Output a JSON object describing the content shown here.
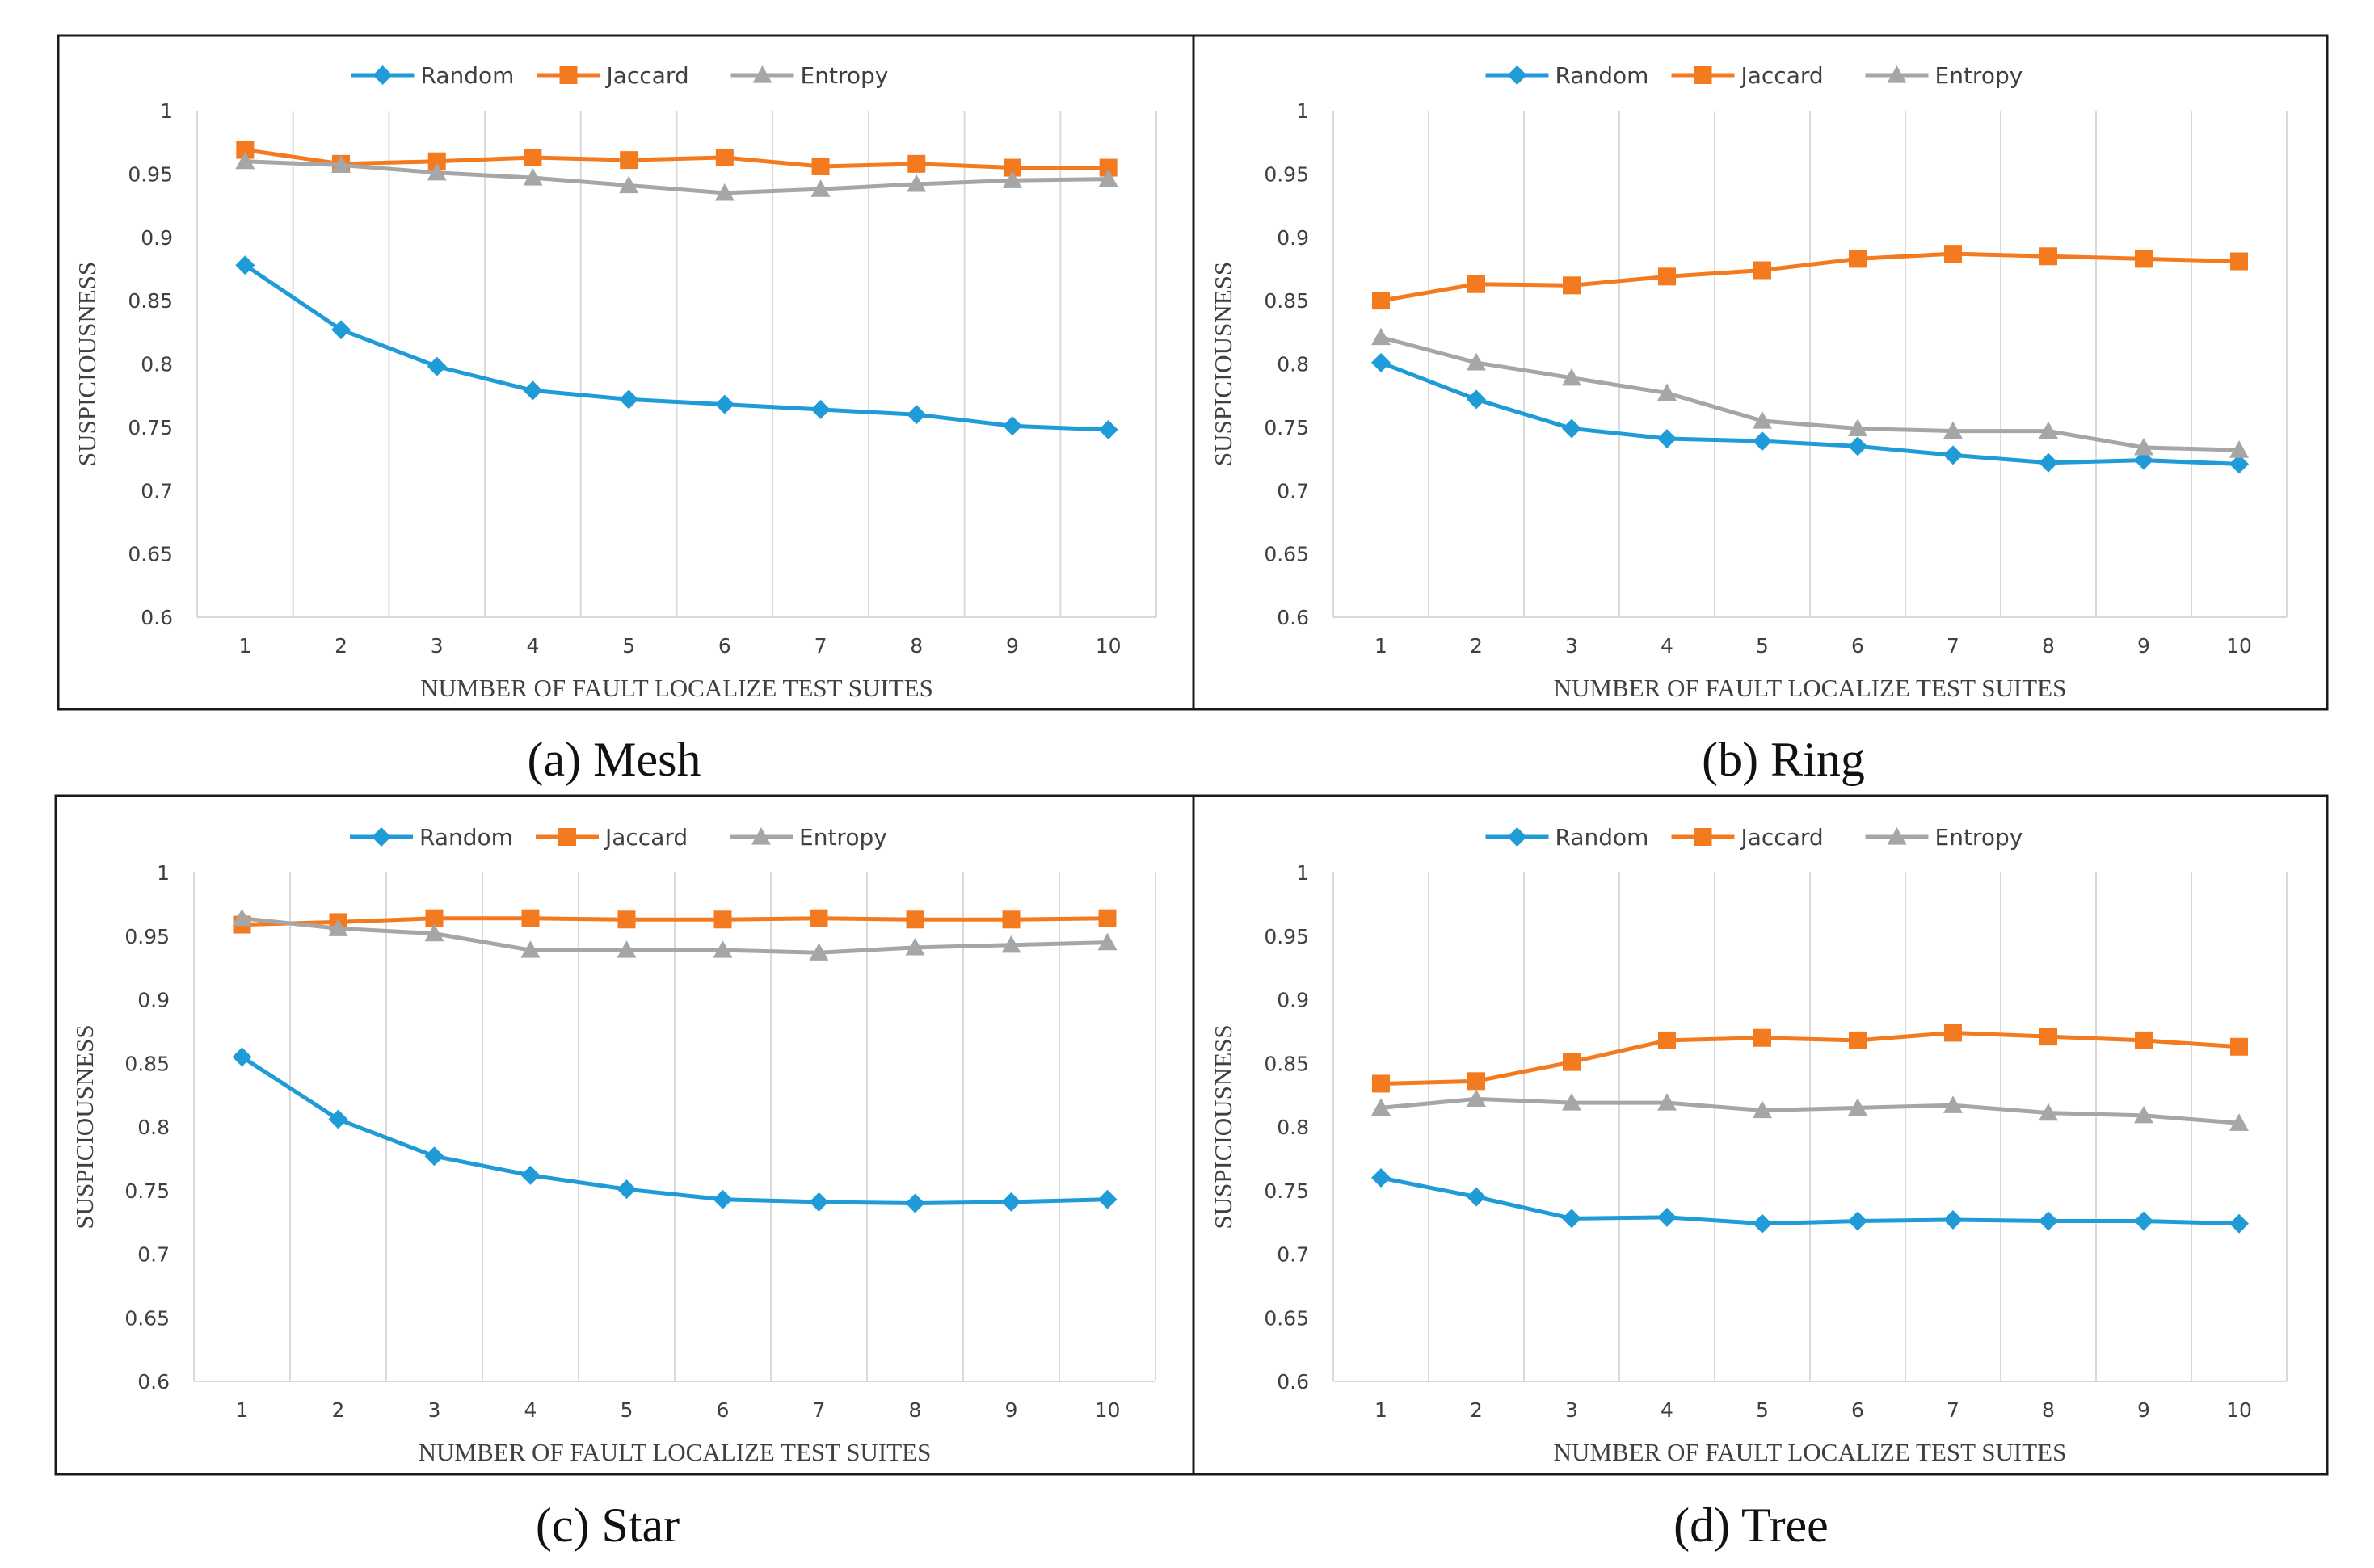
{
  "colors": {
    "Random": "#1f9bd7",
    "Jaccard": "#f47a20",
    "Entropy": "#a6a6a6"
  },
  "chart_data": [
    {
      "type": "line",
      "caption": "(a) Mesh",
      "xlabel": "NUMBER OF FAULT LOCALIZE TEST SUITES",
      "ylabel": "SUSPICIOUSNESS",
      "categories": [
        "1",
        "2",
        "3",
        "4",
        "5",
        "6",
        "7",
        "8",
        "9",
        "10"
      ],
      "ylim": [
        0.6,
        1
      ],
      "yticks": [
        "0.6",
        "0.65",
        "0.7",
        "0.75",
        "0.8",
        "0.85",
        "0.9",
        "0.95",
        "1"
      ],
      "legend_position": "top-center",
      "series": [
        {
          "name": "Random",
          "marker": "diamond",
          "values": [
            0.878,
            0.827,
            0.798,
            0.779,
            0.772,
            0.768,
            0.764,
            0.76,
            0.751,
            0.748
          ]
        },
        {
          "name": "Jaccard",
          "marker": "square",
          "values": [
            0.969,
            0.958,
            0.96,
            0.963,
            0.961,
            0.963,
            0.956,
            0.958,
            0.955,
            0.955
          ]
        },
        {
          "name": "Entropy",
          "marker": "triangle",
          "values": [
            0.96,
            0.957,
            0.951,
            0.947,
            0.941,
            0.935,
            0.938,
            0.942,
            0.945,
            0.946
          ]
        }
      ]
    },
    {
      "type": "line",
      "caption": "(b) Ring",
      "xlabel": "NUMBER OF FAULT LOCALIZE TEST SUITES",
      "ylabel": "SUSPICIOUSNESS",
      "categories": [
        "1",
        "2",
        "3",
        "4",
        "5",
        "6",
        "7",
        "8",
        "9",
        "10"
      ],
      "ylim": [
        0.6,
        1
      ],
      "yticks": [
        "0.6",
        "0.65",
        "0.7",
        "0.75",
        "0.8",
        "0.85",
        "0.9",
        "0.95",
        "1"
      ],
      "legend_position": "top-center",
      "series": [
        {
          "name": "Random",
          "marker": "diamond",
          "values": [
            0.801,
            0.772,
            0.749,
            0.741,
            0.739,
            0.735,
            0.728,
            0.722,
            0.724,
            0.721
          ]
        },
        {
          "name": "Jaccard",
          "marker": "square",
          "values": [
            0.85,
            0.863,
            0.862,
            0.869,
            0.874,
            0.883,
            0.887,
            0.885,
            0.883,
            0.881
          ]
        },
        {
          "name": "Entropy",
          "marker": "triangle",
          "values": [
            0.821,
            0.801,
            0.789,
            0.777,
            0.755,
            0.749,
            0.747,
            0.747,
            0.734,
            0.732
          ]
        }
      ]
    },
    {
      "type": "line",
      "caption": "(c) Star",
      "xlabel": "NUMBER OF FAULT LOCALIZE TEST SUITES",
      "ylabel": "SUSPICIOUSNESS",
      "categories": [
        "1",
        "2",
        "3",
        "4",
        "5",
        "6",
        "7",
        "8",
        "9",
        "10"
      ],
      "ylim": [
        0.6,
        1
      ],
      "yticks": [
        "0.6",
        "0.65",
        "0.7",
        "0.75",
        "0.8",
        "0.85",
        "0.9",
        "0.95",
        "1"
      ],
      "legend_position": "top-center",
      "series": [
        {
          "name": "Random",
          "marker": "diamond",
          "values": [
            0.855,
            0.806,
            0.777,
            0.762,
            0.751,
            0.743,
            0.741,
            0.74,
            0.741,
            0.743
          ]
        },
        {
          "name": "Jaccard",
          "marker": "square",
          "values": [
            0.959,
            0.961,
            0.964,
            0.964,
            0.963,
            0.963,
            0.964,
            0.963,
            0.963,
            0.964
          ]
        },
        {
          "name": "Entropy",
          "marker": "triangle",
          "values": [
            0.964,
            0.956,
            0.952,
            0.939,
            0.939,
            0.939,
            0.937,
            0.941,
            0.943,
            0.945
          ]
        }
      ]
    },
    {
      "type": "line",
      "caption": "(d) Tree",
      "xlabel": "NUMBER OF FAULT LOCALIZE TEST SUITES",
      "ylabel": "SUSPICIOUSNESS",
      "categories": [
        "1",
        "2",
        "3",
        "4",
        "5",
        "6",
        "7",
        "8",
        "9",
        "10"
      ],
      "ylim": [
        0.6,
        1
      ],
      "yticks": [
        "0.6",
        "0.65",
        "0.7",
        "0.75",
        "0.8",
        "0.85",
        "0.9",
        "0.95",
        "1"
      ],
      "legend_position": "top-center",
      "series": [
        {
          "name": "Random",
          "marker": "diamond",
          "values": [
            0.76,
            0.745,
            0.728,
            0.729,
            0.724,
            0.726,
            0.727,
            0.726,
            0.726,
            0.724
          ]
        },
        {
          "name": "Jaccard",
          "marker": "square",
          "values": [
            0.834,
            0.836,
            0.851,
            0.868,
            0.87,
            0.868,
            0.874,
            0.871,
            0.868,
            0.863
          ]
        },
        {
          "name": "Entropy",
          "marker": "triangle",
          "values": [
            0.815,
            0.822,
            0.819,
            0.819,
            0.813,
            0.815,
            0.817,
            0.811,
            0.809,
            0.803
          ]
        }
      ]
    }
  ]
}
